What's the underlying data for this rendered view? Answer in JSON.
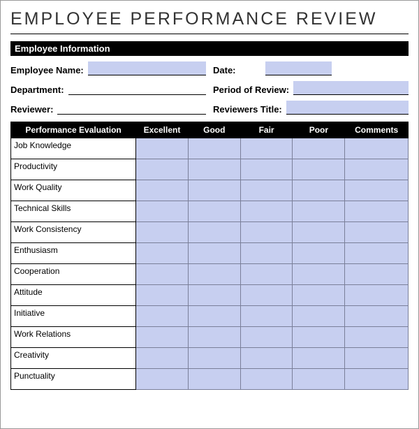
{
  "title": "EMPLOYEE PERFORMANCE REVIEW",
  "section_info_header": "Employee Information",
  "info": {
    "employee_name_label": "Employee Name:",
    "date_label": "Date:",
    "department_label": "Department:",
    "period_label": "Period of Review:",
    "reviewer_label": "Reviewer:",
    "reviewers_title_label": "Reviewers Title:"
  },
  "eval": {
    "header_criteria": "Performance Evaluation",
    "header_excellent": "Excellent",
    "header_good": "Good",
    "header_fair": "Fair",
    "header_poor": "Poor",
    "header_comments": "Comments",
    "rows": [
      "Job Knowledge",
      "Productivity",
      "Work Quality",
      "Technical Skills",
      "Work Consistency",
      "Enthusiasm",
      "Cooperation",
      "Attitude",
      "Initiative",
      "Work Relations",
      "Creativity",
      "Punctuality"
    ]
  },
  "colors": {
    "fill": "#c7cff0",
    "header_bg": "#000000",
    "header_fg": "#ffffff",
    "border": "#7a7f99"
  }
}
